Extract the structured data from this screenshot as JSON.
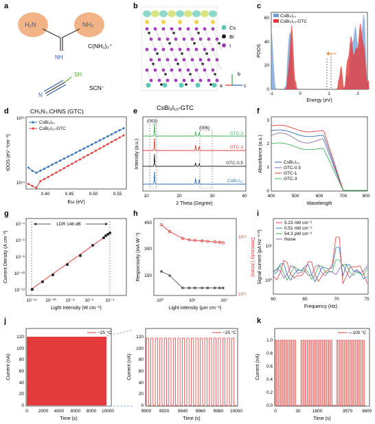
{
  "panels": {
    "a": {
      "label": "a",
      "nh2_left": "H₂N",
      "nh2_right": "NH₂",
      "nh": "NH",
      "cation": "C(NH₂)₃⁺",
      "sh": "SH",
      "n": "N",
      "anion": "SCN⁻",
      "caption": "CH₅N₃.CHNS (GTC)"
    },
    "b": {
      "label": "b",
      "legend": [
        "Cs",
        "Bi",
        "I"
      ],
      "legend_colors": [
        "#5ec9b4",
        "#1a1a1a",
        "#a23ab8"
      ],
      "axes": [
        "a",
        "b",
        "c"
      ],
      "caption": "CsBi₃I₁₀-GTC"
    },
    "c": {
      "label": "c",
      "xlabel": "Energy (eV)",
      "ylabel": "PDOS",
      "legend": [
        "CsBi₃I₁₀",
        "CsBi₃I₁₀-GTC"
      ],
      "colors": [
        "#6f9fd8",
        "#e33b3b"
      ],
      "xticks": [
        "-1",
        "0",
        "1",
        "2"
      ],
      "yticks": [
        "0",
        "20",
        "40",
        "60"
      ]
    },
    "d": {
      "label": "d",
      "ylabel": "tDOS (eV⁻¹cm⁻³)",
      "xlabel": "Eω (eV)",
      "legend": [
        "CsBi₃I₁₀",
        "CsBi₃I₁₀-GTC"
      ],
      "colors": [
        "#2d6db5",
        "#e33b3b"
      ],
      "xticks": [
        "0.40",
        "0.45",
        "0.50",
        "0.55"
      ],
      "yticks": [
        "10¹⁴",
        "10¹⁵"
      ]
    },
    "e": {
      "label": "e",
      "ylabel": "Intensity (a.u.)",
      "xlabel": "2 Theta (Degree)",
      "peaks": [
        "(003)",
        "(006)"
      ],
      "traces": [
        "GTC-3",
        "GTC-1",
        "GTC-0.5",
        "CsBi₃I₁₀"
      ],
      "colors": [
        "#3bb15a",
        "#e33b3b",
        "#222222",
        "#2d6db5"
      ],
      "xticks": [
        "10",
        "20",
        "30",
        "40"
      ]
    },
    "f": {
      "label": "f",
      "ylabel": "Absorbance (a.u.)",
      "xlabel": "Wavelength",
      "legend": [
        "CsBi₃I₁₀",
        "GTC-0.5",
        "GTC-1",
        "GTC-3"
      ],
      "colors": [
        "#2d6db5",
        "#7a6fa8",
        "#e33b3b",
        "#3bb15a"
      ],
      "xticks": [
        "400",
        "500",
        "600",
        "700",
        "800"
      ],
      "yticks": [
        "0",
        "1",
        "2",
        "3"
      ]
    },
    "g": {
      "label": "g",
      "ylabel": "Current Density (A cm⁻²)",
      "xlabel": "Light Intensity (W cm⁻²)",
      "annotation": "LDR 146 dB",
      "xticks": [
        "10⁻¹²",
        "10⁻¹⁰",
        "10⁻⁸",
        "10⁻⁶",
        "10⁻⁴"
      ],
      "yticks": [
        "10⁻¹²",
        "10⁻¹⁰",
        "10⁻⁸",
        "10⁻⁶",
        "10⁻⁴"
      ]
    },
    "h": {
      "label": "h",
      "ylabel": "Responsivity (mA W⁻¹)",
      "y2label": "Detectivity (Jones)",
      "xlabel": "Light intensity (μm cm⁻²)",
      "yticks": [
        "150",
        "300",
        "450"
      ],
      "y2ticks": [
        "10¹²",
        "10¹³"
      ],
      "xticks": [
        "10⁰",
        "10¹",
        "10²"
      ]
    },
    "i": {
      "label": "i",
      "ylabel": "Signal current (pA Hz⁻¹ᐟ²)",
      "xlabel": "Frequency (Hz)",
      "legend": [
        "5.23 nW cm⁻²",
        "0.51 nW cm⁻²",
        "54.3 pW cm⁻²",
        "Noise"
      ],
      "colors": [
        "#e33b3b",
        "#2d6db5",
        "#3bb15a",
        "#9b59b6"
      ],
      "xticks": [
        "60",
        "65",
        "70",
        "75"
      ],
      "yticks": [
        "10⁰",
        "10¹"
      ]
    },
    "j": {
      "label": "j",
      "ylabel": "Current (nA)",
      "xlabel": "Time (s)",
      "legend": "−25 °C",
      "xticks": [
        "0",
        "2000",
        "4000",
        "6000",
        "8000",
        "10000"
      ],
      "yticks": [
        "0",
        "20",
        "40",
        "60",
        "80",
        "100",
        "120"
      ],
      "zoom_xticks": [
        "9900",
        "9920",
        "9940",
        "9960",
        "9980",
        "10000"
      ],
      "zoom_yticks": [
        "0",
        "20",
        "40",
        "60",
        "80",
        "100",
        "120"
      ]
    },
    "k": {
      "label": "k",
      "ylabel": "Current (nA)",
      "xlabel": "Time (s)",
      "legend": "—100 °C",
      "xticks": [
        "0",
        "30",
        "1800",
        "3570",
        "3600"
      ],
      "yticks": [
        "0.0",
        "0.2",
        "0.4",
        "0.6",
        "0.8",
        "1.0"
      ]
    }
  }
}
